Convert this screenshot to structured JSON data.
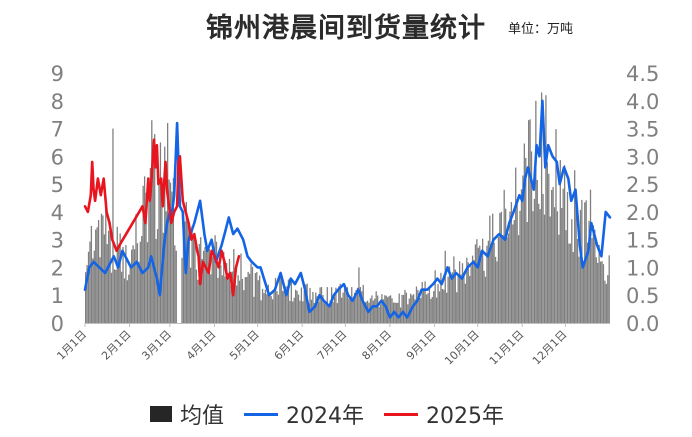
{
  "title": "锦州港晨间到货量统计",
  "unit": "单位：万吨",
  "colors": {
    "bar": "#7f7f7f",
    "bar_legend": "#262626",
    "s2024": "#1464e6",
    "s2025": "#e8141e"
  },
  "chart_data": {
    "type": "bar+line",
    "x_labels": [
      "1月1日",
      "2月1日",
      "3月1日",
      "4月1日",
      "5月1日",
      "6月1日",
      "7月1日",
      "8月1日",
      "9月1日",
      "10月1日",
      "11月1日",
      "12月1日"
    ],
    "y_left": {
      "min": 0,
      "max": 9,
      "step": 1,
      "ticks": [
        "0",
        "1",
        "2",
        "3",
        "4",
        "5",
        "6",
        "7",
        "8",
        "9"
      ]
    },
    "y_right": {
      "min": 0,
      "max": 4.5,
      "step": 0.5,
      "ticks": [
        "0.0",
        "0.5",
        "1.0",
        "1.5",
        "2.0",
        "2.5",
        "3.0",
        "3.5",
        "4.0",
        "4.5"
      ]
    },
    "bars": {
      "name": "均值",
      "axis": "left",
      "day_step": 1,
      "anchors": [
        [
          0,
          2.7
        ],
        [
          10,
          4.2
        ],
        [
          20,
          3.0
        ],
        [
          30,
          2.2
        ],
        [
          40,
          4.5
        ],
        [
          50,
          5.5
        ],
        [
          60,
          5.2
        ],
        [
          65,
          4.0
        ],
        [
          70,
          4.5
        ],
        [
          75,
          3.0
        ],
        [
          80,
          2.6
        ],
        [
          90,
          2.8
        ],
        [
          100,
          2.4
        ],
        [
          110,
          2.0
        ],
        [
          120,
          1.5
        ],
        [
          130,
          1.4
        ],
        [
          140,
          1.3
        ],
        [
          150,
          1.3
        ],
        [
          160,
          1.2
        ],
        [
          170,
          1.1
        ],
        [
          180,
          1.2
        ],
        [
          190,
          1.2
        ],
        [
          200,
          1.0
        ],
        [
          210,
          0.8
        ],
        [
          220,
          0.9
        ],
        [
          230,
          1.2
        ],
        [
          240,
          1.5
        ],
        [
          250,
          1.8
        ],
        [
          260,
          2.0
        ],
        [
          270,
          2.4
        ],
        [
          280,
          3.0
        ],
        [
          290,
          4.0
        ],
        [
          300,
          5.2
        ],
        [
          310,
          6.2
        ],
        [
          315,
          7.0
        ],
        [
          320,
          6.5
        ],
        [
          325,
          6.0
        ],
        [
          330,
          5.5
        ],
        [
          340,
          4.0
        ],
        [
          350,
          3.8
        ],
        [
          360,
          2.0
        ],
        [
          365,
          2.0
        ]
      ],
      "peaks": [
        [
          19,
          7.0
        ],
        [
          46,
          7.3
        ],
        [
          48,
          6.8
        ],
        [
          52,
          6.5
        ],
        [
          57,
          7.2
        ],
        [
          190,
          2.0
        ],
        [
          250,
          2.6
        ],
        [
          313,
          8.0
        ],
        [
          317,
          8.3
        ],
        [
          320,
          8.2
        ],
        [
          340,
          5.5
        ],
        [
          351,
          4.8
        ]
      ],
      "gaps": [
        [
          63,
          66
        ],
        [
          66,
          77
        ]
      ]
    },
    "series": [
      {
        "name": "2024年",
        "axis": "right",
        "points": [
          [
            0,
            0.6
          ],
          [
            3,
            1.0
          ],
          [
            6,
            1.1
          ],
          [
            10,
            1.0
          ],
          [
            14,
            0.9
          ],
          [
            18,
            1.1
          ],
          [
            20,
            1.2
          ],
          [
            23,
            1.0
          ],
          [
            26,
            1.3
          ],
          [
            28,
            1.2
          ],
          [
            32,
            1.0
          ],
          [
            36,
            1.1
          ],
          [
            40,
            0.9
          ],
          [
            44,
            1.0
          ],
          [
            46,
            1.2
          ],
          [
            48,
            1.0
          ],
          [
            50,
            0.8
          ],
          [
            52,
            0.5
          ],
          [
            55,
            1.4
          ],
          [
            57,
            1.8
          ],
          [
            59,
            2.0
          ],
          [
            60,
            1.9
          ],
          [
            62,
            2.3
          ],
          [
            64,
            3.6
          ],
          [
            66,
            2.1
          ],
          [
            68,
            2.0
          ],
          [
            70,
            0.9
          ],
          [
            72,
            1.5
          ],
          [
            76,
            1.8
          ],
          [
            80,
            2.2
          ],
          [
            83,
            1.6
          ],
          [
            85,
            1.3
          ],
          [
            88,
            1.5
          ],
          [
            91,
            1.1
          ],
          [
            95,
            1.4
          ],
          [
            98,
            1.7
          ],
          [
            100,
            1.9
          ],
          [
            103,
            1.6
          ],
          [
            106,
            1.7
          ],
          [
            110,
            1.5
          ],
          [
            113,
            1.2
          ],
          [
            116,
            1.1
          ],
          [
            120,
            1.0
          ],
          [
            122,
            1.0
          ],
          [
            128,
            0.5
          ],
          [
            132,
            0.6
          ],
          [
            136,
            0.9
          ],
          [
            140,
            0.5
          ],
          [
            143,
            0.8
          ],
          [
            146,
            0.7
          ],
          [
            150,
            0.9
          ],
          [
            153,
            0.6
          ],
          [
            156,
            0.2
          ],
          [
            160,
            0.3
          ],
          [
            163,
            0.5
          ],
          [
            166,
            0.4
          ],
          [
            170,
            0.3
          ],
          [
            173,
            0.5
          ],
          [
            176,
            0.6
          ],
          [
            180,
            0.7
          ],
          [
            183,
            0.5
          ],
          [
            186,
            0.4
          ],
          [
            190,
            0.6
          ],
          [
            193,
            0.4
          ],
          [
            197,
            0.2
          ],
          [
            200,
            0.3
          ],
          [
            203,
            0.3
          ],
          [
            206,
            0.4
          ],
          [
            209,
            0.3
          ],
          [
            212,
            0.1
          ],
          [
            215,
            0.2
          ],
          [
            218,
            0.1
          ],
          [
            221,
            0.2
          ],
          [
            224,
            0.1
          ],
          [
            228,
            0.3
          ],
          [
            231,
            0.4
          ],
          [
            234,
            0.6
          ],
          [
            238,
            0.6
          ],
          [
            242,
            0.7
          ],
          [
            245,
            0.8
          ],
          [
            248,
            0.7
          ],
          [
            252,
            1.0
          ],
          [
            255,
            0.8
          ],
          [
            258,
            0.9
          ],
          [
            262,
            0.8
          ],
          [
            266,
            1.0
          ],
          [
            270,
            1.1
          ],
          [
            273,
            1.0
          ],
          [
            276,
            1.3
          ],
          [
            280,
            1.2
          ],
          [
            284,
            1.5
          ],
          [
            288,
            1.6
          ],
          [
            292,
            1.5
          ],
          [
            295,
            1.8
          ],
          [
            298,
            2.0
          ],
          [
            302,
            2.3
          ],
          [
            304,
            2.2
          ],
          [
            306,
            2.6
          ],
          [
            308,
            2.8
          ],
          [
            310,
            2.6
          ],
          [
            312,
            2.4
          ],
          [
            314,
            3.2
          ],
          [
            316,
            3.0
          ],
          [
            318,
            4.0
          ],
          [
            320,
            2.8
          ],
          [
            322,
            3.2
          ],
          [
            325,
            3.0
          ],
          [
            328,
            2.9
          ],
          [
            330,
            2.5
          ],
          [
            333,
            2.8
          ],
          [
            336,
            2.6
          ],
          [
            338,
            2.2
          ],
          [
            341,
            2.4
          ],
          [
            344,
            1.4
          ],
          [
            346,
            1.0
          ],
          [
            350,
            1.3
          ],
          [
            352,
            1.8
          ],
          [
            356,
            1.4
          ],
          [
            359,
            1.2
          ],
          [
            362,
            2.0
          ],
          [
            365,
            1.9
          ]
        ]
      },
      {
        "name": "2025年",
        "axis": "right",
        "points": [
          [
            0,
            2.1
          ],
          [
            2,
            2.0
          ],
          [
            4,
            2.3
          ],
          [
            5,
            2.9
          ],
          [
            6,
            2.4
          ],
          [
            7,
            2.2
          ],
          [
            9,
            2.6
          ],
          [
            11,
            2.3
          ],
          [
            13,
            2.6
          ],
          [
            15,
            2.0
          ],
          [
            17,
            1.8
          ],
          [
            19,
            1.5
          ],
          [
            22,
            1.3
          ],
          [
            24,
            1.4
          ],
          [
            40,
            2.1
          ],
          [
            42,
            1.8
          ],
          [
            44,
            2.6
          ],
          [
            45,
            2.2
          ],
          [
            46,
            2.5
          ],
          [
            47,
            2.9
          ],
          [
            48,
            3.3
          ],
          [
            49,
            2.8
          ],
          [
            50,
            3.2
          ],
          [
            51,
            2.5
          ],
          [
            53,
            2.6
          ],
          [
            54,
            2.1
          ],
          [
            56,
            2.9
          ],
          [
            57,
            2.4
          ],
          [
            58,
            2.2
          ],
          [
            60,
            1.8
          ],
          [
            62,
            2.0
          ],
          [
            64,
            2.1
          ],
          [
            65,
            2.9
          ],
          [
            66,
            3.0
          ],
          [
            68,
            2.2
          ],
          [
            70,
            2.0
          ],
          [
            72,
            1.8
          ],
          [
            74,
            1.5
          ],
          [
            76,
            1.6
          ],
          [
            78,
            1.3
          ],
          [
            79,
            1.2
          ],
          [
            80,
            0.7
          ],
          [
            82,
            1.1
          ],
          [
            84,
            1.0
          ],
          [
            86,
            0.9
          ],
          [
            88,
            1.3
          ],
          [
            90,
            1.2
          ],
          [
            93,
            1.0
          ],
          [
            95,
            1.3
          ],
          [
            97,
            1.1
          ],
          [
            99,
            0.8
          ],
          [
            101,
            0.9
          ],
          [
            103,
            0.5
          ],
          [
            105,
            1.0
          ],
          [
            107,
            1.2
          ]
        ]
      }
    ],
    "legend": [
      {
        "name": "均值",
        "kind": "box"
      },
      {
        "name": "2024年",
        "kind": "line"
      },
      {
        "name": "2025年",
        "kind": "line"
      }
    ]
  }
}
